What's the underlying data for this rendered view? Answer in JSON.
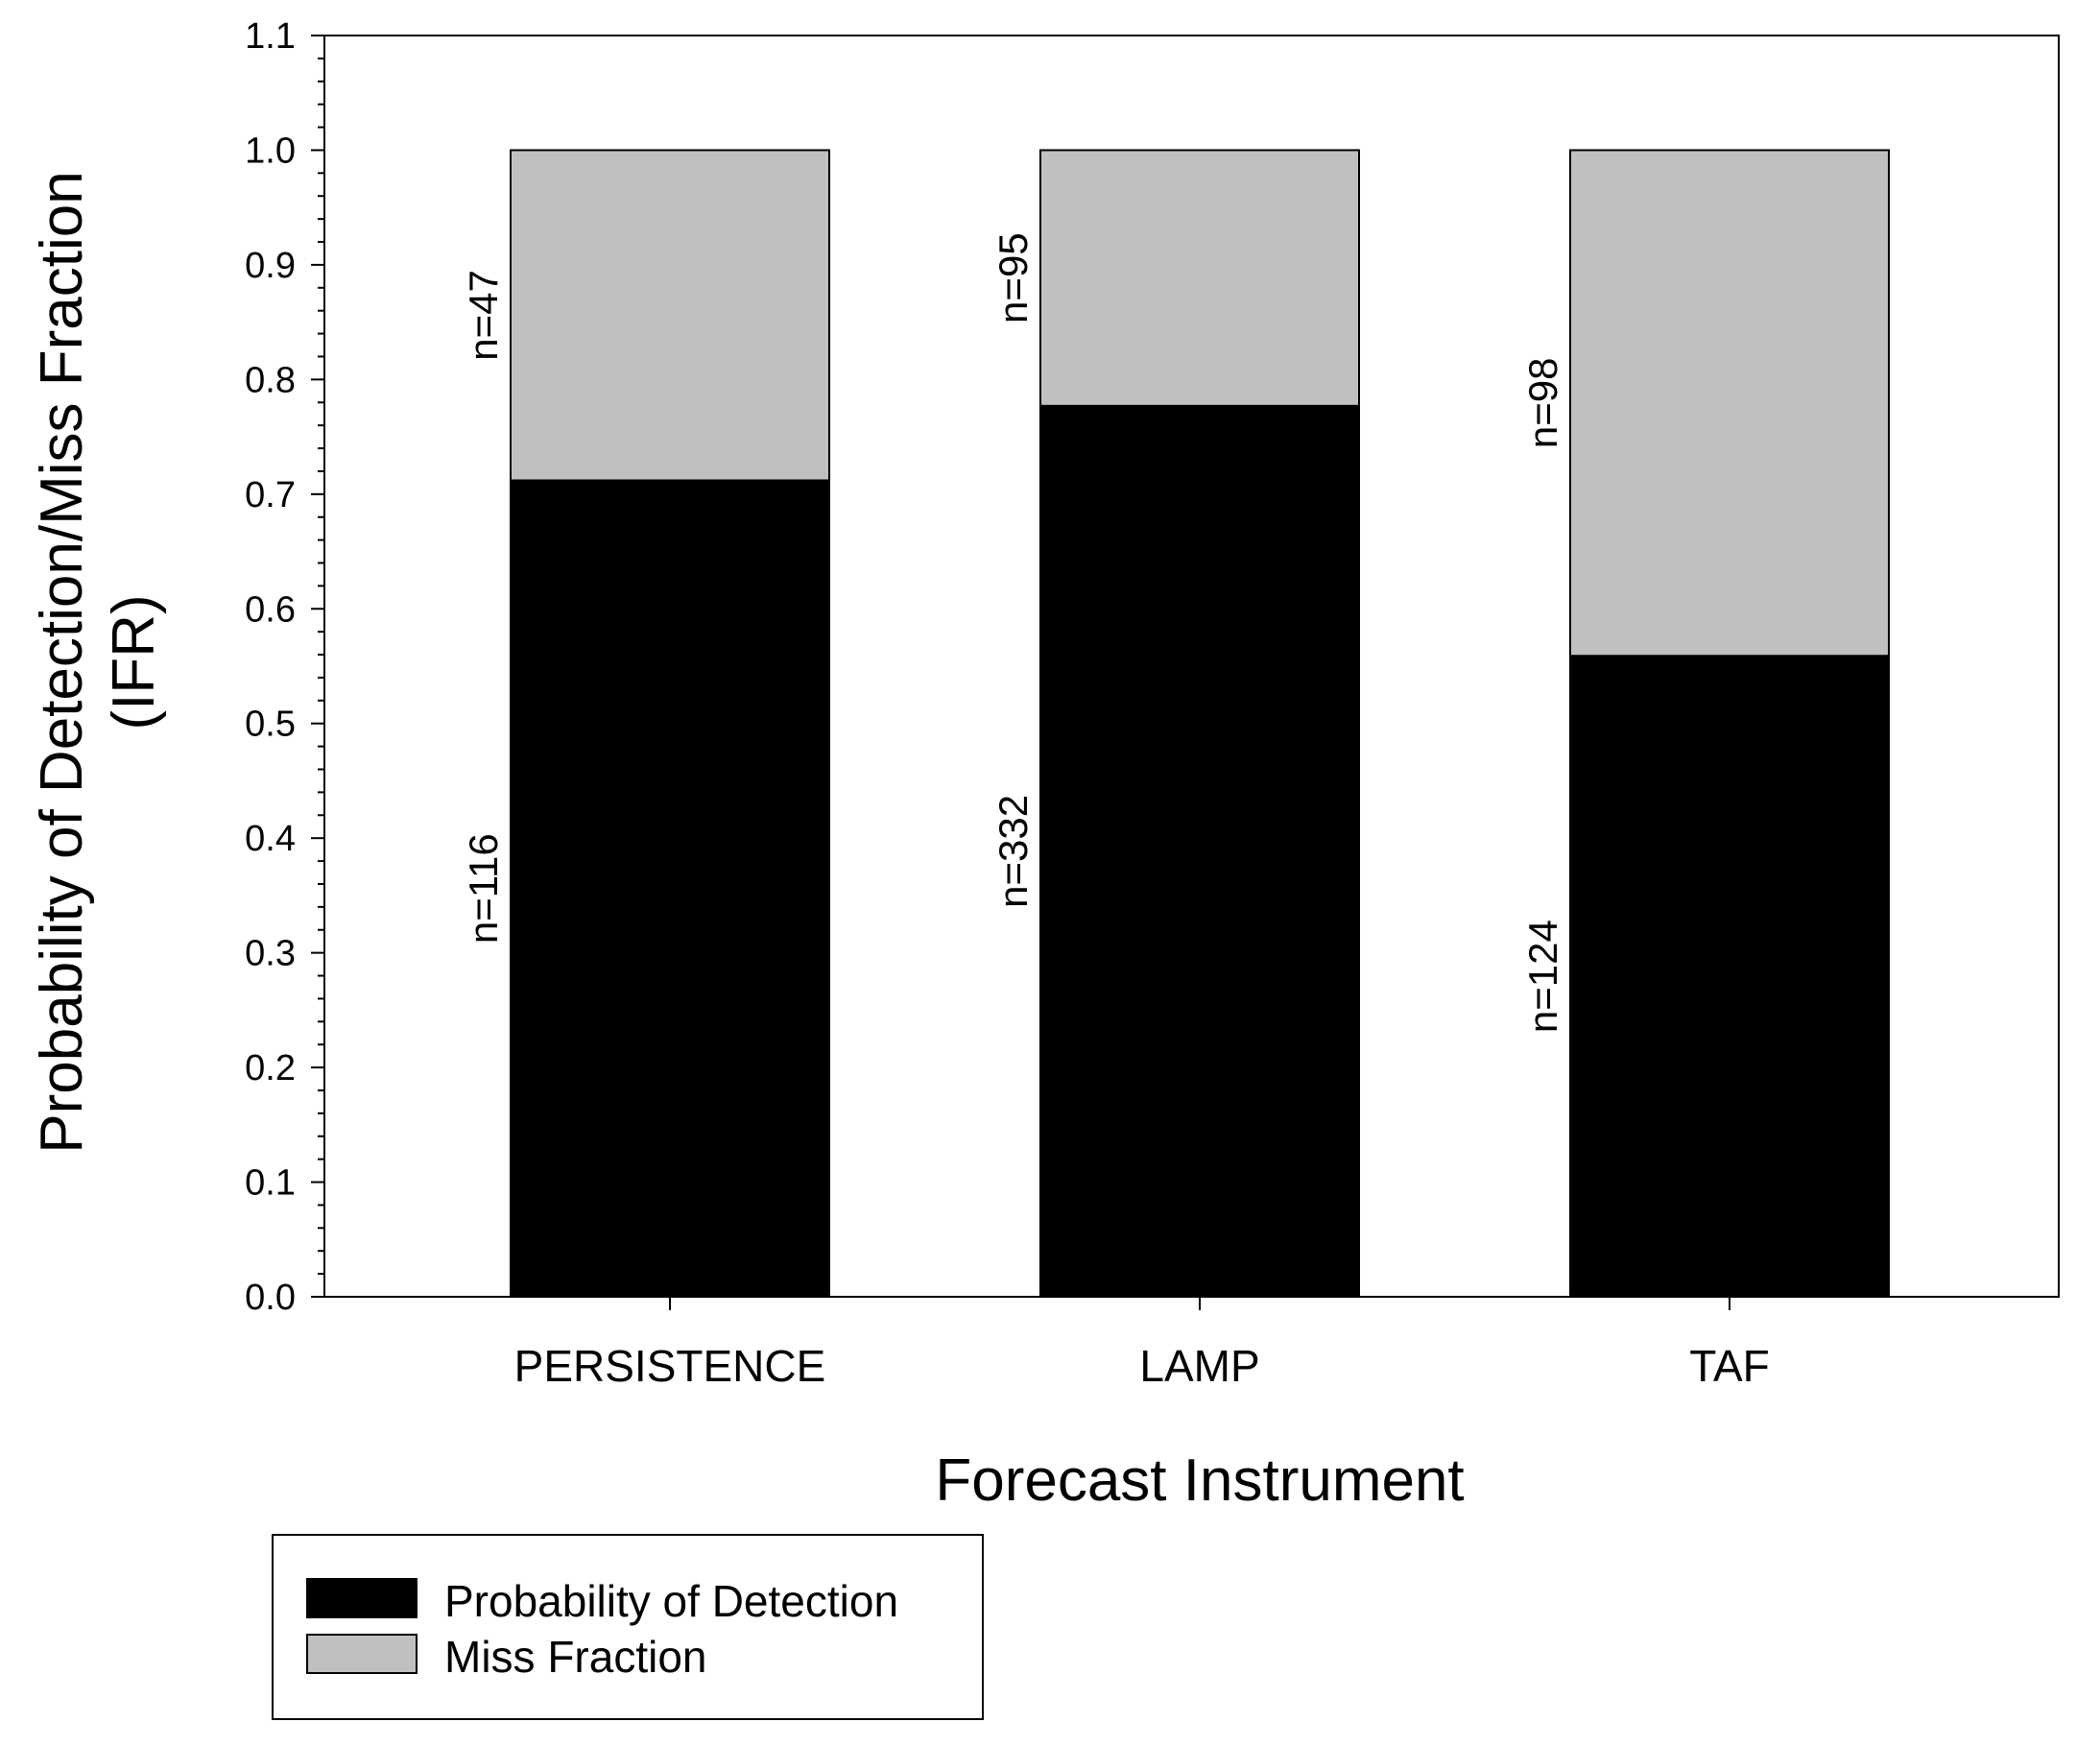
{
  "chart_data": {
    "type": "bar",
    "stacked": true,
    "categories": [
      "PERSISTENCE",
      "LAMP",
      "TAF"
    ],
    "series": [
      {
        "name": "Probability of Detection",
        "values": [
          0.712,
          0.777,
          0.559
        ],
        "counts": [
          "n=116",
          "n=332",
          "n=124"
        ],
        "color": "#000000"
      },
      {
        "name": "Miss Fraction",
        "values": [
          0.288,
          0.223,
          0.441
        ],
        "counts": [
          "n=47",
          "n=95",
          "n=98"
        ],
        "color": "#c0c0c0"
      }
    ],
    "xlabel": "Forecast Instrument",
    "ylabel_line1": "Probability of Detection/Miss Fraction",
    "ylabel_line2": "(IFR)",
    "ylim": [
      0,
      1.1
    ],
    "yticks": [
      "0.0",
      "0.1",
      "0.2",
      "0.3",
      "0.4",
      "0.5",
      "0.6",
      "0.7",
      "0.8",
      "0.9",
      "1.0",
      "1.1"
    ],
    "legend": {
      "position": "bottom-left",
      "entries": [
        "Probability of Detection",
        "Miss Fraction"
      ]
    },
    "grid": false
  }
}
